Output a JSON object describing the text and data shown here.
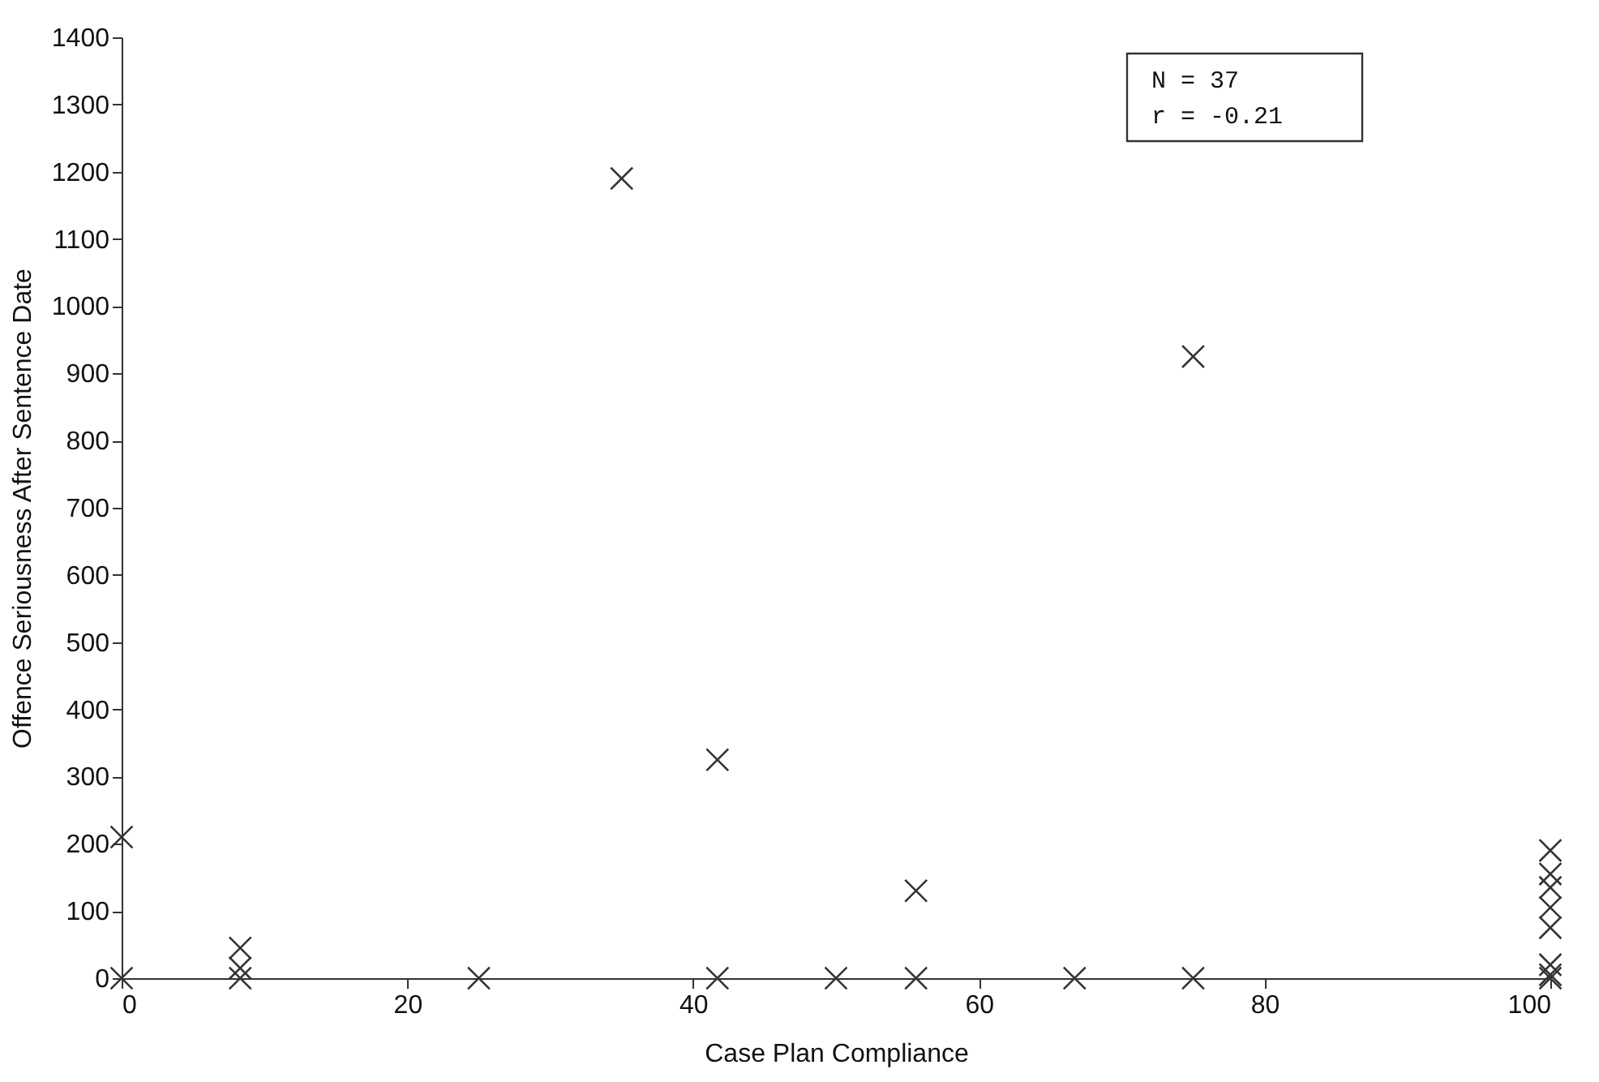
{
  "chart_data": {
    "type": "scatter",
    "xlabel": "Case Plan Compliance",
    "ylabel": "Offence Seriousness After Sentence Date",
    "x": [
      0,
      0,
      8.3,
      8.3,
      8.3,
      25,
      35,
      41.7,
      41.7,
      50,
      55.6,
      55.6,
      66.7,
      75,
      75,
      100,
      100,
      100,
      100,
      100,
      100,
      100,
      100
    ],
    "series": [
      {
        "color": "#333333",
        "values": [
          210,
          0,
          45,
          15,
          0,
          0,
          1190,
          325,
          0,
          0,
          130,
          0,
          0,
          925,
          0,
          190,
          155,
          135,
          105,
          75,
          20,
          5,
          0
        ]
      }
    ],
    "xlim": [
      0,
      100
    ],
    "xticks": [
      0,
      20,
      40,
      60,
      80,
      100
    ],
    "ylim": [
      0,
      1400
    ],
    "yticks": [
      0,
      100,
      200,
      300,
      400,
      500,
      600,
      700,
      800,
      900,
      1000,
      1100,
      1200,
      1300,
      1400
    ],
    "marker": "cross",
    "grid": false,
    "annotations": [
      "N = 37",
      "r = -0.21"
    ]
  }
}
